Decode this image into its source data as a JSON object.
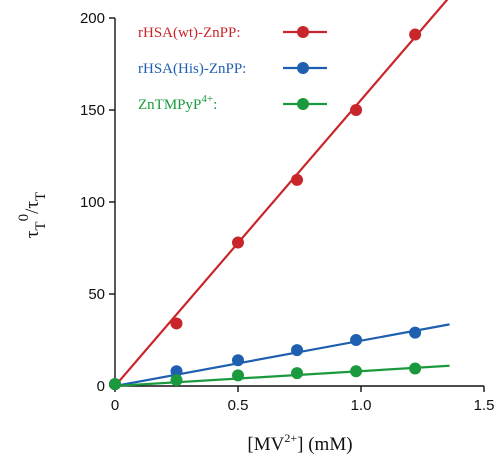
{
  "chart_data": {
    "type": "scatter",
    "xlim": [
      0,
      1.5
    ],
    "ylim": [
      0,
      200
    ],
    "x_ticks": [
      "0",
      "0.5",
      "1.0",
      "1.5"
    ],
    "y_ticks": [
      "0",
      "50",
      "100",
      "150",
      "200"
    ],
    "xlabel": {
      "main": "[MV",
      "sup": "2+",
      "tail": "] (mM)"
    },
    "ylabel": {
      "t1": "τ",
      "sub1": "T",
      "sup1": "0",
      "slash": "/τ",
      "sub2": "T"
    },
    "grid": false,
    "legend_position": "top-left",
    "series": [
      {
        "name": "rHSA(wt)-ZnPP:",
        "color": "#c8262b",
        "x": [
          0,
          0.25,
          0.5,
          0.74,
          0.98,
          1.22
        ],
        "y": [
          1,
          34,
          78,
          112,
          150,
          191
        ],
        "fit": {
          "x": [
            0,
            1.37
          ],
          "y": [
            0,
            213
          ]
        }
      },
      {
        "name": "rHSA(His)-ZnPP:",
        "color": "#1f5fb0",
        "x": [
          0,
          0.25,
          0.5,
          0.74,
          0.98,
          1.22
        ],
        "y": [
          1,
          8,
          14,
          19.5,
          25,
          29
        ],
        "fit": {
          "x": [
            0,
            1.36
          ],
          "y": [
            0,
            33.5
          ]
        }
      },
      {
        "name": "ZnTMPyP4+:",
        "label_main": "ZnTMPyP",
        "label_sup": "4+",
        "label_tail": ":",
        "color": "#1a9a3c",
        "x": [
          0,
          0.25,
          0.5,
          0.74,
          0.98,
          1.22
        ],
        "y": [
          1,
          3.2,
          5.8,
          7,
          8,
          9.5
        ],
        "fit": {
          "x": [
            0,
            1.36
          ],
          "y": [
            0,
            11
          ]
        }
      }
    ]
  }
}
